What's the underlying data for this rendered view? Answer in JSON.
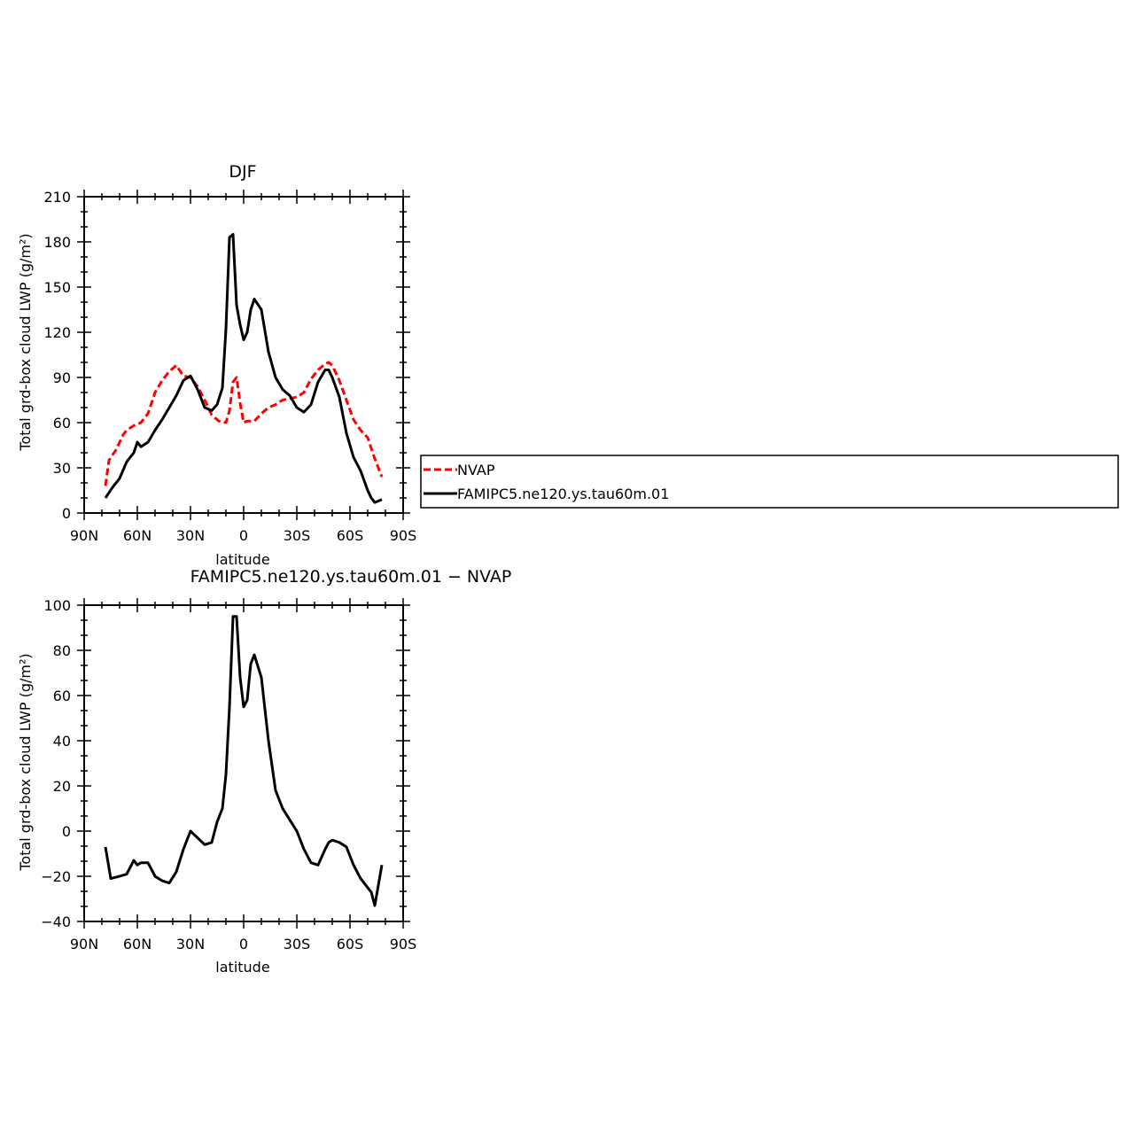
{
  "chart_data": [
    {
      "type": "line",
      "title": "DJF",
      "xlabel": "latitude",
      "ylabel": "Total grd-box cloud LWP (g/m²)",
      "xlim": [
        90,
        -90
      ],
      "ylim": [
        0,
        210
      ],
      "xticks": [
        90,
        60,
        30,
        0,
        -30,
        -60,
        -90
      ],
      "xtick_labels": [
        "90N",
        "60N",
        "30N",
        "0",
        "30S",
        "60S",
        "90S"
      ],
      "yticks": [
        0,
        30,
        60,
        90,
        120,
        150,
        180,
        210
      ],
      "ytick_labels": [
        "0",
        "30",
        "60",
        "90",
        "120",
        "150",
        "180",
        "210"
      ],
      "grid": false,
      "legend_position": "right",
      "series": [
        {
          "name": "NVAP",
          "color": "#ff0000",
          "style": "dashed",
          "x": [
            78,
            76,
            72,
            68,
            66,
            62,
            58,
            54,
            50,
            46,
            42,
            38,
            34,
            30,
            26,
            22,
            18,
            14,
            10,
            8,
            6,
            4,
            2,
            0,
            -2,
            -6,
            -10,
            -14,
            -18,
            -22,
            -26,
            -30,
            -34,
            -38,
            -42,
            -46,
            -48,
            -50,
            -54,
            -58,
            -62,
            -66,
            -70,
            -74,
            -78
          ],
          "values": [
            18,
            35,
            42,
            52,
            55,
            58,
            60,
            66,
            80,
            88,
            94,
            98,
            91,
            90,
            84,
            75,
            65,
            61,
            60,
            68,
            87,
            90,
            73,
            60,
            61,
            61,
            66,
            70,
            72,
            75,
            76,
            77,
            80,
            89,
            95,
            99,
            100,
            98,
            88,
            75,
            62,
            55,
            50,
            36,
            24
          ]
        },
        {
          "name": "FAMIPC5.ne120.ys.tau60m.01",
          "color": "#000000",
          "style": "solid",
          "x": [
            78,
            74,
            70,
            66,
            62,
            60,
            58,
            54,
            50,
            46,
            42,
            38,
            34,
            30,
            26,
            22,
            18,
            15,
            12,
            10,
            8,
            6,
            4,
            2,
            0,
            -2,
            -4,
            -6,
            -10,
            -14,
            -18,
            -22,
            -26,
            -30,
            -34,
            -38,
            -42,
            -46,
            -48,
            -50,
            -54,
            -58,
            -62,
            -66,
            -70,
            -72,
            -74,
            -78
          ],
          "values": [
            10,
            17,
            23,
            34,
            40,
            47,
            44,
            47,
            55,
            62,
            70,
            78,
            88,
            91,
            82,
            70,
            68,
            72,
            83,
            122,
            183,
            185,
            138,
            125,
            115,
            120,
            135,
            142,
            135,
            107,
            90,
            82,
            78,
            70,
            67,
            72,
            87,
            95,
            95,
            90,
            77,
            53,
            37,
            28,
            15,
            10,
            7,
            9
          ]
        }
      ]
    },
    {
      "type": "line",
      "title": "FAMIPC5.ne120.ys.tau60m.01 − NVAP",
      "xlabel": "latitude",
      "ylabel": "Total grd-box cloud LWP (g/m²)",
      "xlim": [
        90,
        -90
      ],
      "ylim": [
        -40,
        100
      ],
      "xticks": [
        90,
        60,
        30,
        0,
        -30,
        -60,
        -90
      ],
      "xtick_labels": [
        "90N",
        "60N",
        "30N",
        "0",
        "30S",
        "60S",
        "90S"
      ],
      "yticks": [
        -40,
        -20,
        0,
        20,
        40,
        60,
        80,
        100
      ],
      "ytick_labels": [
        "−40",
        "−20",
        "0",
        "20",
        "40",
        "60",
        "80",
        "100"
      ],
      "grid": false,
      "series": [
        {
          "color": "#000000",
          "style": "solid",
          "x": [
            78,
            75,
            70,
            66,
            62,
            60,
            58,
            54,
            50,
            46,
            42,
            38,
            34,
            30,
            26,
            22,
            18,
            15,
            12,
            10,
            8,
            6,
            4,
            2,
            0,
            -2,
            -4,
            -6,
            -10,
            -14,
            -18,
            -22,
            -26,
            -30,
            -34,
            -38,
            -42,
            -46,
            -48,
            -50,
            -54,
            -58,
            -62,
            -66,
            -70,
            -72,
            -74,
            -78
          ],
          "values": [
            -7,
            -21,
            -20,
            -19,
            -13,
            -15,
            -14,
            -14,
            -20,
            -22,
            -23,
            -18,
            -8,
            0,
            -3,
            -6,
            -5,
            4,
            10,
            25,
            55,
            95,
            95,
            68,
            55,
            58,
            74,
            78,
            68,
            40,
            18,
            10,
            5,
            0,
            -8,
            -14,
            -15,
            -8,
            -5,
            -4,
            -5,
            -7,
            -15,
            -21,
            -25,
            -27,
            -33,
            -15
          ]
        }
      ]
    }
  ],
  "legend_box": {
    "entries": [
      {
        "label": "NVAP",
        "color": "#ff0000",
        "style": "dashed"
      },
      {
        "label": "FAMIPC5.ne120.ys.tau60m.01",
        "color": "#000000",
        "style": "solid"
      }
    ]
  }
}
